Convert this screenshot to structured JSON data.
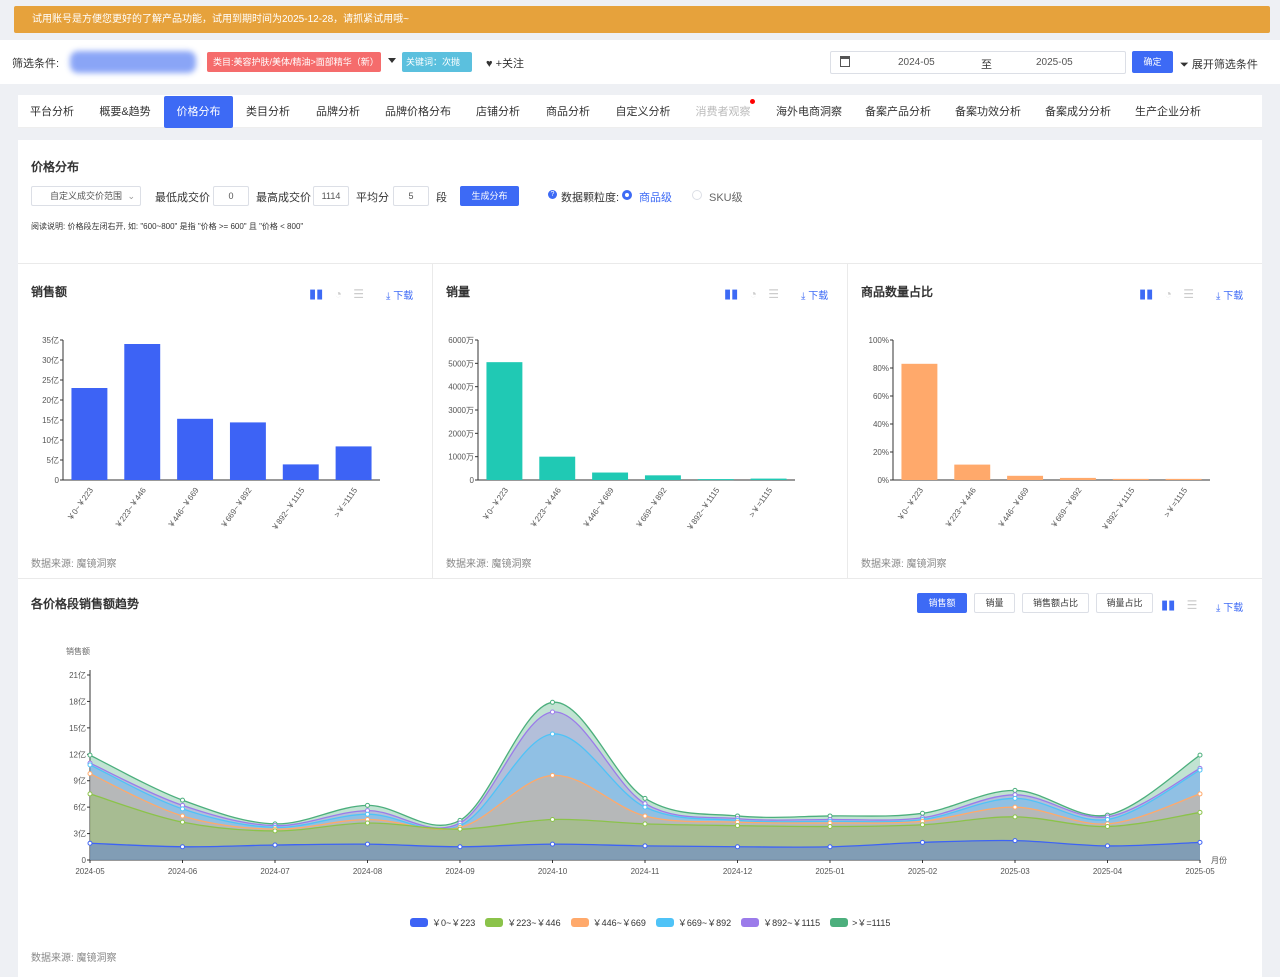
{
  "banner": {
    "text": "试用账号是方便您更好的了解产品功能，试用到期时间为2025-12-28，请抓紧试用哦~"
  },
  "filter": {
    "label": "筛选条件:",
    "category_tag": "类目:美容护肤/美体/精油>面部精华（新）",
    "keyword_tag": "关键词：次抛",
    "follow": "♥ +关注",
    "date_start": "2024-05",
    "date_to": "至",
    "date_end": "2025-05",
    "confirm": "确定",
    "expand": "展开筛选条件"
  },
  "tabs": [
    {
      "label": "平台分析"
    },
    {
      "label": "概要&趋势"
    },
    {
      "label": "价格分布"
    },
    {
      "label": "类目分析"
    },
    {
      "label": "品牌分析"
    },
    {
      "label": "品牌价格分布"
    },
    {
      "label": "店铺分析"
    },
    {
      "label": "商品分析"
    },
    {
      "label": "自定义分析"
    },
    {
      "label": "消费者观察"
    },
    {
      "label": "海外电商洞察"
    },
    {
      "label": "备案产品分析"
    },
    {
      "label": "备案功效分析"
    },
    {
      "label": "备案成分分析"
    },
    {
      "label": "生产企业分析"
    }
  ],
  "price": {
    "title": "价格分布",
    "range_select": "自定义成交价范围",
    "min_label": "最低成交价",
    "min_value": "0",
    "max_label": "最高成交价",
    "max_value": "1114",
    "avg_label": "平均分",
    "avg_value": "5",
    "seg_label": "段",
    "generate": "生成分布",
    "granularity_label": "数据颗粒度:",
    "opt_product": "商品级",
    "opt_sku": "SKU级",
    "note": "阅读说明: 价格段左闭右开, 如: \"600~800\" 是指 \"价格 >= 600\" 且 \"价格 < 800\""
  },
  "download": "下载",
  "source": "数据来源: 魔镜洞察",
  "chart_data": [
    {
      "type": "bar",
      "title": "销售额",
      "categories": [
        "￥0~￥223",
        "￥223~￥446",
        "￥446~￥669",
        "￥669~￥892",
        "￥892~￥1115",
        ">￥=1115"
      ],
      "values": [
        23,
        34,
        15.3,
        14.4,
        3.9,
        8.4
      ],
      "ylim": [
        0,
        35
      ],
      "yticks": [
        "0",
        "5亿",
        "10亿",
        "15亿",
        "20亿",
        "25亿",
        "30亿",
        "35亿"
      ],
      "color": "#3d63f5"
    },
    {
      "type": "bar",
      "title": "销量",
      "categories": [
        "￥0~￥223",
        "￥223~￥446",
        "￥446~￥669",
        "￥669~￥892",
        "￥892~￥1115",
        ">￥=1115"
      ],
      "values": [
        5050,
        1000,
        320,
        200,
        40,
        60
      ],
      "ylim": [
        0,
        6000
      ],
      "yticks": [
        "0",
        "1000万",
        "2000万",
        "3000万",
        "4000万",
        "5000万",
        "6000万"
      ],
      "color": "#20c9b4"
    },
    {
      "type": "bar",
      "title": "商品数量占比",
      "categories": [
        "￥0~￥223",
        "￥223~￥446",
        "￥446~￥669",
        "￥669~￥892",
        "￥892~￥1115",
        ">￥=1115"
      ],
      "values": [
        83,
        11,
        3,
        1.5,
        0.8,
        0.8
      ],
      "ylim": [
        0,
        100
      ],
      "yticks": [
        "0%",
        "20%",
        "40%",
        "60%",
        "80%",
        "100%"
      ],
      "color": "#ffa96b"
    },
    {
      "type": "area",
      "title": "各价格段销售额趋势",
      "ylabel": "销售额",
      "xlabel": "月份",
      "x": [
        "2024-05",
        "2024-06",
        "2024-07",
        "2024-08",
        "2024-09",
        "2024-10",
        "2024-11",
        "2024-12",
        "2025-01",
        "2025-02",
        "2025-03",
        "2025-04",
        "2025-05"
      ],
      "ylim": [
        0,
        21
      ],
      "yticks": [
        "0",
        "3亿",
        "6亿",
        "9亿",
        "12亿",
        "15亿",
        "18亿",
        "21亿"
      ],
      "series": [
        {
          "name": "￥0~￥223",
          "color": "#3d63f5",
          "values": [
            1.9,
            1.5,
            1.7,
            1.8,
            1.5,
            1.8,
            1.6,
            1.5,
            1.5,
            2.0,
            2.2,
            1.6,
            2.0
          ]
        },
        {
          "name": "￥223~￥446",
          "color": "#8bc34a",
          "values": [
            7.5,
            4.3,
            3.3,
            4.2,
            3.5,
            4.6,
            4.1,
            3.9,
            3.8,
            4.0,
            4.9,
            3.8,
            5.4
          ]
        },
        {
          "name": "￥446~￥669",
          "color": "#ffa96b",
          "values": [
            9.8,
            5.0,
            3.5,
            4.6,
            3.7,
            9.6,
            5.0,
            4.3,
            4.2,
            4.4,
            6.0,
            4.1,
            7.5
          ]
        },
        {
          "name": "￥669~￥892",
          "color": "#4fc3f7",
          "values": [
            10.8,
            5.8,
            3.7,
            5.2,
            3.9,
            14.3,
            6.0,
            4.5,
            4.4,
            4.6,
            7.0,
            4.6,
            10.2
          ]
        },
        {
          "name": "￥892~￥1115",
          "color": "#9b7bea",
          "values": [
            11.0,
            6.2,
            3.9,
            5.6,
            4.2,
            16.8,
            6.4,
            4.7,
            4.6,
            4.8,
            7.4,
            4.9,
            10.4
          ]
        },
        {
          "name": ">￥=1115",
          "color": "#4caf7d",
          "values": [
            11.9,
            6.8,
            4.1,
            6.2,
            4.5,
            17.9,
            7.0,
            5.0,
            5.0,
            5.3,
            7.9,
            5.1,
            11.9
          ]
        }
      ]
    }
  ],
  "trend": {
    "btn_sales": "销售额",
    "btn_volume": "销量",
    "btn_sales_ratio": "销售额占比",
    "btn_volume_ratio": "销量占比"
  }
}
